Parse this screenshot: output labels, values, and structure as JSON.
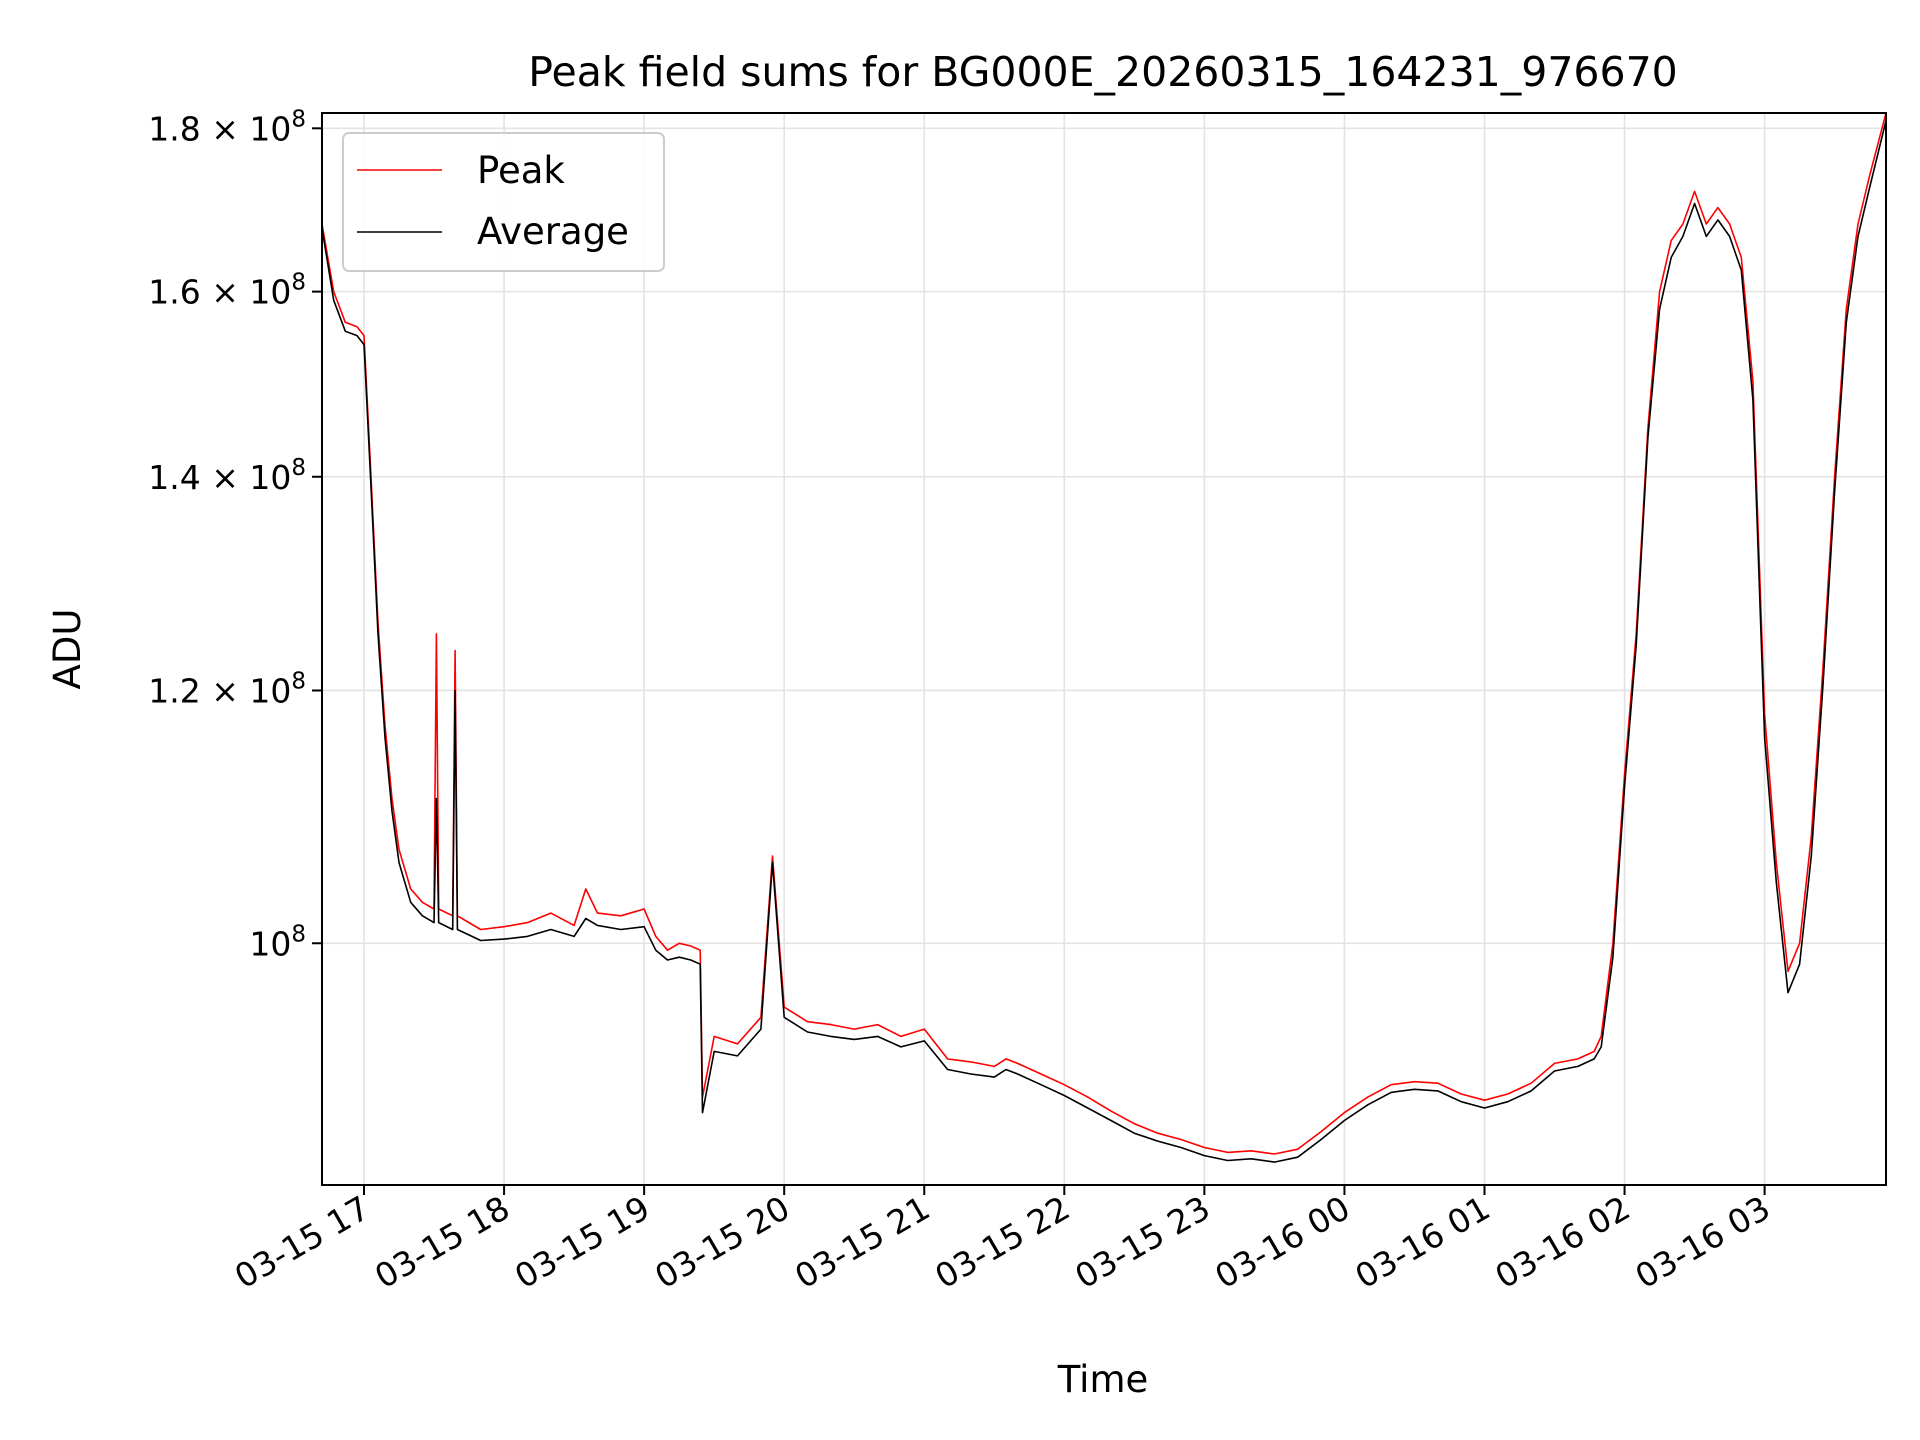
{
  "chart_data": {
    "type": "line",
    "title": "Peak field sums for BG000E_20260315_164231_976670",
    "xlabel": "Time",
    "ylabel": "ADU",
    "yscale": "log",
    "grid": true,
    "legend_placement": "upper-left",
    "x_range": [
      "2026-03-15 16:42",
      "2026-03-16 03:52"
    ],
    "ylim": [
      84000000,
      182000000
    ],
    "x_ticks": [
      "03-15 17",
      "03-15 18",
      "03-15 19",
      "03-15 20",
      "03-15 21",
      "03-15 22",
      "03-15 23",
      "03-16 00",
      "03-16 01",
      "03-16 02",
      "03-16 03"
    ],
    "x_tick_times": [
      "2026-03-15 17:00",
      "2026-03-15 18:00",
      "2026-03-15 19:00",
      "2026-03-15 20:00",
      "2026-03-15 21:00",
      "2026-03-15 22:00",
      "2026-03-15 23:00",
      "2026-03-16 00:00",
      "2026-03-16 01:00",
      "2026-03-16 02:00",
      "2026-03-16 03:00"
    ],
    "y_ticks": [
      {
        "value": 100000000,
        "mantissa": "",
        "exp": "8"
      },
      {
        "value": 120000000,
        "mantissa": "1.2",
        "exp": "8"
      },
      {
        "value": 140000000,
        "mantissa": "1.4",
        "exp": "8"
      },
      {
        "value": 160000000,
        "mantissa": "1.6",
        "exp": "8"
      },
      {
        "value": 180000000,
        "mantissa": "1.8",
        "exp": "8"
      }
    ],
    "series": [
      {
        "name": "Peak",
        "color": "#ff0000",
        "points": [
          [
            "2026-03-15 16:42",
            168000000
          ],
          [
            "2026-03-15 16:47",
            160000000
          ],
          [
            "2026-03-15 16:52",
            156500000
          ],
          [
            "2026-03-15 16:57",
            156000000
          ],
          [
            "2026-03-15 17:00",
            155000000
          ],
          [
            "2026-03-15 17:03",
            140000000
          ],
          [
            "2026-03-15 17:06",
            126000000
          ],
          [
            "2026-03-15 17:09",
            117000000
          ],
          [
            "2026-03-15 17:12",
            111000000
          ],
          [
            "2026-03-15 17:15",
            107000000
          ],
          [
            "2026-03-15 17:20",
            104000000
          ],
          [
            "2026-03-15 17:25",
            103000000
          ],
          [
            "2026-03-15 17:30",
            102500000
          ],
          [
            "2026-03-15 17:31",
            125000000
          ],
          [
            "2026-03-15 17:32",
            102500000
          ],
          [
            "2026-03-15 17:38",
            102000000
          ],
          [
            "2026-03-15 17:39",
            123500000
          ],
          [
            "2026-03-15 17:40",
            102000000
          ],
          [
            "2026-03-15 17:50",
            101000000
          ],
          [
            "2026-03-15 18:00",
            101200000
          ],
          [
            "2026-03-15 18:10",
            101500000
          ],
          [
            "2026-03-15 18:20",
            102200000
          ],
          [
            "2026-03-15 18:30",
            101300000
          ],
          [
            "2026-03-15 18:35",
            104000000
          ],
          [
            "2026-03-15 18:40",
            102200000
          ],
          [
            "2026-03-15 18:50",
            102000000
          ],
          [
            "2026-03-15 19:00",
            102500000
          ],
          [
            "2026-03-15 19:05",
            100500000
          ],
          [
            "2026-03-15 19:10",
            99500000
          ],
          [
            "2026-03-15 19:15",
            100000000
          ],
          [
            "2026-03-15 19:20",
            99800000
          ],
          [
            "2026-03-15 19:24",
            99500000
          ],
          [
            "2026-03-15 19:25",
            89500000
          ],
          [
            "2026-03-15 19:30",
            93500000
          ],
          [
            "2026-03-15 19:40",
            93000000
          ],
          [
            "2026-03-15 19:50",
            94800000
          ],
          [
            "2026-03-15 19:55",
            106500000
          ],
          [
            "2026-03-15 20:00",
            95500000
          ],
          [
            "2026-03-15 20:10",
            94500000
          ],
          [
            "2026-03-15 20:20",
            94300000
          ],
          [
            "2026-03-15 20:30",
            94000000
          ],
          [
            "2026-03-15 20:40",
            94300000
          ],
          [
            "2026-03-15 20:50",
            93500000
          ],
          [
            "2026-03-15 21:00",
            94000000
          ],
          [
            "2026-03-15 21:10",
            92000000
          ],
          [
            "2026-03-15 21:20",
            91800000
          ],
          [
            "2026-03-15 21:30",
            91500000
          ],
          [
            "2026-03-15 21:35",
            92000000
          ],
          [
            "2026-03-15 21:40",
            91700000
          ],
          [
            "2026-03-15 21:50",
            91000000
          ],
          [
            "2026-03-15 22:00",
            90300000
          ],
          [
            "2026-03-15 22:10",
            89500000
          ],
          [
            "2026-03-15 22:20",
            88600000
          ],
          [
            "2026-03-15 22:30",
            87800000
          ],
          [
            "2026-03-15 22:40",
            87200000
          ],
          [
            "2026-03-15 22:50",
            86800000
          ],
          [
            "2026-03-15 23:00",
            86300000
          ],
          [
            "2026-03-15 23:10",
            86000000
          ],
          [
            "2026-03-15 23:20",
            86100000
          ],
          [
            "2026-03-15 23:30",
            85900000
          ],
          [
            "2026-03-15 23:40",
            86200000
          ],
          [
            "2026-03-15 23:50",
            87300000
          ],
          [
            "2026-03-16 00:00",
            88500000
          ],
          [
            "2026-03-16 00:10",
            89500000
          ],
          [
            "2026-03-16 00:20",
            90300000
          ],
          [
            "2026-03-16 00:30",
            90500000
          ],
          [
            "2026-03-16 00:40",
            90400000
          ],
          [
            "2026-03-16 00:50",
            89700000
          ],
          [
            "2026-03-16 01:00",
            89300000
          ],
          [
            "2026-03-16 01:10",
            89700000
          ],
          [
            "2026-03-16 01:20",
            90400000
          ],
          [
            "2026-03-16 01:30",
            91700000
          ],
          [
            "2026-03-16 01:40",
            92000000
          ],
          [
            "2026-03-16 01:47",
            92500000
          ],
          [
            "2026-03-16 01:50",
            93500000
          ],
          [
            "2026-03-16 01:55",
            100000000
          ],
          [
            "2026-03-16 02:00",
            113000000
          ],
          [
            "2026-03-16 02:05",
            125000000
          ],
          [
            "2026-03-16 02:10",
            145000000
          ],
          [
            "2026-03-16 02:15",
            160000000
          ],
          [
            "2026-03-16 02:20",
            166000000
          ],
          [
            "2026-03-16 02:25",
            168000000
          ],
          [
            "2026-03-16 02:30",
            172000000
          ],
          [
            "2026-03-16 02:35",
            168000000
          ],
          [
            "2026-03-16 02:40",
            170000000
          ],
          [
            "2026-03-16 02:45",
            168000000
          ],
          [
            "2026-03-16 02:50",
            164000000
          ],
          [
            "2026-03-16 02:55",
            150000000
          ],
          [
            "2026-03-16 03:00",
            118000000
          ],
          [
            "2026-03-16 03:05",
            106000000
          ],
          [
            "2026-03-16 03:10",
            98000000
          ],
          [
            "2026-03-16 03:15",
            100000000
          ],
          [
            "2026-03-16 03:20",
            108000000
          ],
          [
            "2026-03-16 03:25",
            122000000
          ],
          [
            "2026-03-16 03:30",
            140000000
          ],
          [
            "2026-03-16 03:35",
            158000000
          ],
          [
            "2026-03-16 03:40",
            168000000
          ],
          [
            "2026-03-16 03:45",
            174000000
          ],
          [
            "2026-03-16 03:52",
            182000000
          ]
        ]
      },
      {
        "name": "Average",
        "color": "#000000",
        "points": [
          [
            "2026-03-15 16:42",
            167500000
          ],
          [
            "2026-03-15 16:47",
            159000000
          ],
          [
            "2026-03-15 16:52",
            155500000
          ],
          [
            "2026-03-15 16:57",
            155000000
          ],
          [
            "2026-03-15 17:00",
            154000000
          ],
          [
            "2026-03-15 17:03",
            139000000
          ],
          [
            "2026-03-15 17:06",
            125000000
          ],
          [
            "2026-03-15 17:09",
            116000000
          ],
          [
            "2026-03-15 17:12",
            110000000
          ],
          [
            "2026-03-15 17:15",
            106000000
          ],
          [
            "2026-03-15 17:20",
            103000000
          ],
          [
            "2026-03-15 17:25",
            102000000
          ],
          [
            "2026-03-15 17:30",
            101500000
          ],
          [
            "2026-03-15 17:31",
            111000000
          ],
          [
            "2026-03-15 17:32",
            101500000
          ],
          [
            "2026-03-15 17:38",
            101000000
          ],
          [
            "2026-03-15 17:39",
            120000000
          ],
          [
            "2026-03-15 17:40",
            101000000
          ],
          [
            "2026-03-15 17:50",
            100200000
          ],
          [
            "2026-03-15 18:00",
            100300000
          ],
          [
            "2026-03-15 18:10",
            100500000
          ],
          [
            "2026-03-15 18:20",
            101000000
          ],
          [
            "2026-03-15 18:30",
            100500000
          ],
          [
            "2026-03-15 18:35",
            101800000
          ],
          [
            "2026-03-15 18:40",
            101300000
          ],
          [
            "2026-03-15 18:50",
            101000000
          ],
          [
            "2026-03-15 19:00",
            101200000
          ],
          [
            "2026-03-15 19:05",
            99500000
          ],
          [
            "2026-03-15 19:10",
            98800000
          ],
          [
            "2026-03-15 19:15",
            99000000
          ],
          [
            "2026-03-15 19:20",
            98800000
          ],
          [
            "2026-03-15 19:24",
            98500000
          ],
          [
            "2026-03-15 19:25",
            88500000
          ],
          [
            "2026-03-15 19:30",
            92500000
          ],
          [
            "2026-03-15 19:40",
            92200000
          ],
          [
            "2026-03-15 19:50",
            94000000
          ],
          [
            "2026-03-15 19:55",
            106000000
          ],
          [
            "2026-03-15 20:00",
            94800000
          ],
          [
            "2026-03-15 20:10",
            93800000
          ],
          [
            "2026-03-15 20:20",
            93500000
          ],
          [
            "2026-03-15 20:30",
            93300000
          ],
          [
            "2026-03-15 20:40",
            93500000
          ],
          [
            "2026-03-15 20:50",
            92800000
          ],
          [
            "2026-03-15 21:00",
            93200000
          ],
          [
            "2026-03-15 21:10",
            91300000
          ],
          [
            "2026-03-15 21:20",
            91000000
          ],
          [
            "2026-03-15 21:30",
            90800000
          ],
          [
            "2026-03-15 21:35",
            91300000
          ],
          [
            "2026-03-15 21:40",
            91000000
          ],
          [
            "2026-03-15 21:50",
            90300000
          ],
          [
            "2026-03-15 22:00",
            89600000
          ],
          [
            "2026-03-15 22:10",
            88800000
          ],
          [
            "2026-03-15 22:20",
            88000000
          ],
          [
            "2026-03-15 22:30",
            87200000
          ],
          [
            "2026-03-15 22:40",
            86700000
          ],
          [
            "2026-03-15 22:50",
            86300000
          ],
          [
            "2026-03-15 23:00",
            85800000
          ],
          [
            "2026-03-15 23:10",
            85500000
          ],
          [
            "2026-03-15 23:20",
            85600000
          ],
          [
            "2026-03-15 23:30",
            85400000
          ],
          [
            "2026-03-15 23:40",
            85700000
          ],
          [
            "2026-03-15 23:50",
            86800000
          ],
          [
            "2026-03-16 00:00",
            88000000
          ],
          [
            "2026-03-16 00:10",
            89000000
          ],
          [
            "2026-03-16 00:20",
            89800000
          ],
          [
            "2026-03-16 00:30",
            90000000
          ],
          [
            "2026-03-16 00:40",
            89900000
          ],
          [
            "2026-03-16 00:50",
            89200000
          ],
          [
            "2026-03-16 01:00",
            88800000
          ],
          [
            "2026-03-16 01:10",
            89200000
          ],
          [
            "2026-03-16 01:20",
            89900000
          ],
          [
            "2026-03-16 01:30",
            91200000
          ],
          [
            "2026-03-16 01:40",
            91500000
          ],
          [
            "2026-03-16 01:47",
            92000000
          ],
          [
            "2026-03-16 01:50",
            92800000
          ],
          [
            "2026-03-16 01:55",
            99000000
          ],
          [
            "2026-03-16 02:00",
            112000000
          ],
          [
            "2026-03-16 02:05",
            124000000
          ],
          [
            "2026-03-16 02:10",
            144000000
          ],
          [
            "2026-03-16 02:15",
            158000000
          ],
          [
            "2026-03-16 02:20",
            164000000
          ],
          [
            "2026-03-16 02:25",
            166500000
          ],
          [
            "2026-03-16 02:30",
            170500000
          ],
          [
            "2026-03-16 02:35",
            166500000
          ],
          [
            "2026-03-16 02:40",
            168500000
          ],
          [
            "2026-03-16 02:45",
            166500000
          ],
          [
            "2026-03-16 02:50",
            162500000
          ],
          [
            "2026-03-16 02:55",
            148000000
          ],
          [
            "2026-03-16 03:00",
            116000000
          ],
          [
            "2026-03-16 03:05",
            104500000
          ],
          [
            "2026-03-16 03:10",
            96500000
          ],
          [
            "2026-03-16 03:15",
            98500000
          ],
          [
            "2026-03-16 03:20",
            106500000
          ],
          [
            "2026-03-16 03:25",
            120500000
          ],
          [
            "2026-03-16 03:30",
            138500000
          ],
          [
            "2026-03-16 03:35",
            156500000
          ],
          [
            "2026-03-16 03:40",
            166500000
          ],
          [
            "2026-03-16 03:45",
            172500000
          ],
          [
            "2026-03-16 03:52",
            181000000
          ]
        ]
      }
    ]
  }
}
